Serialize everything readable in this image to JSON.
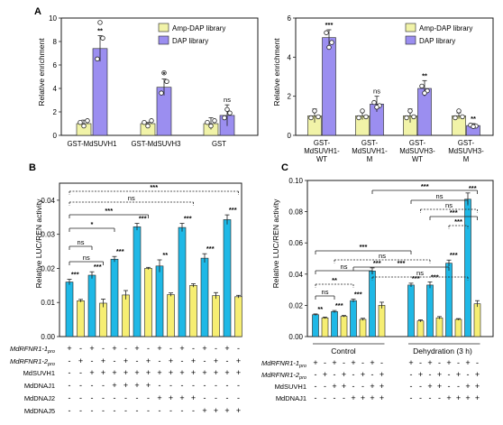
{
  "colors": {
    "amp": "#f1f3a8",
    "dap": "#9b8ef0",
    "cyan": "#1fb8e6",
    "yellow": "#f6ee72",
    "frame": "#1b1b1b"
  },
  "panel_letters": [
    "A",
    "B",
    "C"
  ],
  "legend": {
    "amp": "Amp-DAP library",
    "dap": "DAP library"
  },
  "chart_data": [
    {
      "type": "bar",
      "panel": "A",
      "ylabel": "Relative enrichment",
      "ylim": [
        0,
        10
      ],
      "yticks": [
        "0",
        "2",
        "4",
        "6",
        "8",
        "10"
      ],
      "categories": [
        "GST-MdSUVH1",
        "GST-MdSUVH3",
        "GST"
      ],
      "series": [
        {
          "name": "Amp-DAP library",
          "values": [
            1.0,
            1.0,
            1.0
          ],
          "errors": [
            0.3,
            0.1,
            0.5
          ]
        },
        {
          "name": "DAP library",
          "values": [
            7.4,
            4.1,
            1.7
          ],
          "errors": [
            1.1,
            0.7,
            0.9
          ]
        }
      ],
      "significance": [
        "**",
        "*",
        "ns"
      ]
    },
    {
      "type": "bar",
      "panel": "A",
      "ylabel": "Relative enrichment",
      "ylim": [
        0,
        6
      ],
      "yticks": [
        "0",
        "2",
        "4",
        "6"
      ],
      "categories": [
        "GST-\nMdSUVH1-\nWT",
        "GST-\nMdSUVH1-\nM",
        "GST-\nMdSUVH3-\nWT",
        "GST-\nMdSUVH3-\nM"
      ],
      "series": [
        {
          "name": "Amp-DAP library",
          "values": [
            1.0,
            1.0,
            1.0,
            1.0
          ],
          "errors": [
            0.35,
            0.2,
            0.35,
            0.15
          ]
        },
        {
          "name": "DAP library",
          "values": [
            5.0,
            1.6,
            2.4,
            0.5
          ],
          "errors": [
            0.4,
            0.4,
            0.4,
            0.1
          ]
        }
      ],
      "significance": [
        "***",
        "ns",
        "**",
        "**"
      ]
    },
    {
      "type": "bar",
      "panel": "B",
      "ylabel": "Relative LUC/REN activity",
      "ylim": [
        0,
        0.045
      ],
      "yticks": [
        "0.00",
        "0.01",
        "0.02",
        "0.03",
        "0.04"
      ],
      "cyan_values": [
        0.016,
        0.018,
        0.0227,
        0.0322,
        0.0207,
        0.032,
        0.023,
        0.0343
      ],
      "cyan_errors": [
        0.0008,
        0.001,
        0.0008,
        0.001,
        0.0018,
        0.0012,
        0.0013,
        0.0014
      ],
      "yellow_values": [
        0.0105,
        0.0098,
        0.0122,
        0.02,
        0.0123,
        0.015,
        0.012,
        0.0117
      ],
      "yellow_errors": [
        0.0004,
        0.0012,
        0.0013,
        0.0003,
        0.0005,
        0.0005,
        0.0009,
        0.0004
      ],
      "pair_significance": [
        "***",
        "***",
        "***",
        "***",
        "**",
        "***",
        "***",
        "***"
      ],
      "brackets": [
        "ns",
        "ns",
        "*",
        "***",
        "ns",
        "***"
      ],
      "row_labels": [
        "MdRFNR1-1",
        "MdRFNR1-2",
        "MdSUVH1",
        "MdDNAJ1",
        "MdDNAJ2",
        "MdDNAJ5"
      ],
      "row_label_sub": "pro",
      "rows": [
        [
          "+",
          "-",
          "+",
          "-",
          "+",
          "-",
          "+",
          "-",
          "+",
          "-",
          "+",
          "-",
          "+",
          "-",
          "+",
          "-"
        ],
        [
          "-",
          "+",
          "-",
          "+",
          "-",
          "+",
          "-",
          "+",
          "-",
          "+",
          "-",
          "+",
          "-",
          "+",
          "-",
          "+"
        ],
        [
          "-",
          "-",
          "+",
          "+",
          "+",
          "+",
          "+",
          "+",
          "+",
          "+",
          "+",
          "+",
          "+",
          "+",
          "+",
          "+"
        ],
        [
          "-",
          "-",
          "-",
          "-",
          "+",
          "+",
          "+",
          "+",
          "-",
          "-",
          "-",
          "-",
          "-",
          "-",
          "-",
          "-"
        ],
        [
          "-",
          "-",
          "-",
          "-",
          "-",
          "-",
          "-",
          "-",
          "+",
          "+",
          "+",
          "+",
          "-",
          "-",
          "-",
          "-"
        ],
        [
          "-",
          "-",
          "-",
          "-",
          "-",
          "-",
          "-",
          "-",
          "-",
          "-",
          "-",
          "-",
          "+",
          "+",
          "+",
          "+"
        ]
      ]
    },
    {
      "type": "bar",
      "panel": "C",
      "ylabel": "Relative LUC/REN activity",
      "ylim": [
        0,
        0.1
      ],
      "yticks": [
        "0.00",
        "0.02",
        "0.04",
        "0.06",
        "0.08",
        "0.10"
      ],
      "cyan_values": [
        0.014,
        0.016,
        0.023,
        0.042,
        0.033,
        0.033,
        0.047,
        0.088
      ],
      "cyan_errors": [
        0.0005,
        0.0007,
        0.001,
        0.002,
        0.0012,
        0.002,
        0.002,
        0.004
      ],
      "yellow_values": [
        0.012,
        0.013,
        0.011,
        0.02,
        0.01,
        0.012,
        0.011,
        0.021
      ],
      "yellow_errors": [
        0.0005,
        0.0005,
        0.0007,
        0.002,
        0.0007,
        0.0008,
        0.0005,
        0.002
      ],
      "pair_significance": [
        "**",
        "***",
        "***",
        "***",
        "***",
        "***",
        "***",
        "***"
      ],
      "bracket_labels": [
        "***",
        "ns",
        "**",
        "ns",
        "ns",
        "***",
        "ns",
        "***",
        "ns",
        "***",
        "***",
        "ns"
      ],
      "group_labels": [
        "Control",
        "Dehydration (3 h)"
      ],
      "row_labels": [
        "MdRFNR1-1",
        "MdRFNR1-2",
        "MdSUVH1",
        "MdDNAJ1"
      ],
      "row_label_sub": "pro",
      "rows": [
        [
          "+",
          "-",
          "+",
          "-",
          "+",
          "-",
          "+",
          "-",
          "+",
          "-",
          "+",
          "-",
          "+",
          "-",
          "+",
          "-"
        ],
        [
          "-",
          "+",
          "-",
          "+",
          "-",
          "+",
          "-",
          "+",
          "-",
          "+",
          "-",
          "+",
          "-",
          "+",
          "-",
          "+"
        ],
        [
          "-",
          "-",
          "+",
          "+",
          "-",
          "-",
          "+",
          "+",
          "-",
          "-",
          "+",
          "+",
          "-",
          "-",
          "+",
          "+"
        ],
        [
          "-",
          "-",
          "-",
          "-",
          "+",
          "+",
          "+",
          "+",
          "-",
          "-",
          "-",
          "-",
          "+",
          "+",
          "+",
          "+"
        ]
      ]
    }
  ]
}
